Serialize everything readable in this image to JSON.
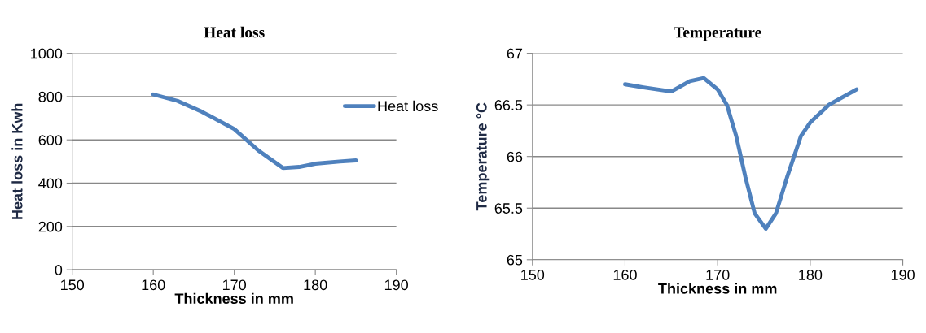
{
  "chart_data": [
    {
      "type": "line",
      "title": "Heat loss",
      "xlabel": "Thickness in mm",
      "ylabel": "Heat loss in Kwh",
      "series": [
        {
          "name": "Heat loss",
          "color": "#4f81bd",
          "x": [
            160,
            163,
            166,
            170,
            173,
            176,
            178,
            180,
            183,
            185
          ],
          "values": [
            810,
            780,
            730,
            650,
            550,
            470,
            475,
            490,
            500,
            505
          ]
        }
      ],
      "xlim": [
        150,
        190
      ],
      "xticks": [
        150,
        160,
        170,
        180,
        190
      ],
      "ylim": [
        0,
        1000
      ],
      "yticks": [
        0,
        200,
        400,
        600,
        800,
        1000
      ],
      "grid": "y",
      "legend": "right",
      "marker": "none",
      "line_style": "solid"
    },
    {
      "type": "line",
      "title": "Temperature",
      "xlabel": "Thickness in mm",
      "ylabel": "Temperature °C",
      "series": [
        {
          "color": "#4f81bd",
          "x": [
            160,
            162,
            165,
            167,
            168.5,
            170,
            171,
            172,
            173,
            174,
            175.2,
            176.3,
            177.5,
            179,
            180,
            182,
            185
          ],
          "values": [
            66.7,
            66.67,
            66.63,
            66.73,
            66.76,
            66.65,
            66.5,
            66.2,
            65.8,
            65.45,
            65.3,
            65.45,
            65.8,
            66.2,
            66.33,
            66.5,
            66.65
          ]
        }
      ],
      "xlim": [
        150,
        190
      ],
      "xticks": [
        150,
        160,
        170,
        180,
        190
      ],
      "ylim": [
        65,
        67
      ],
      "yticks": [
        65,
        65.5,
        66,
        66.5,
        67
      ],
      "grid": "y",
      "marker": "none",
      "line_style": "solid"
    }
  ]
}
